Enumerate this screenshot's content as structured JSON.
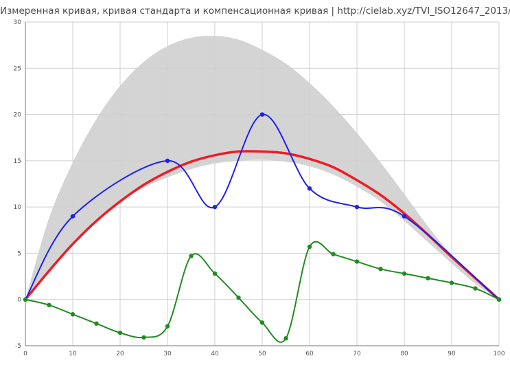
{
  "title": "Измеренная кривая, кривая стандарта и компенсационная кривая | http://cielab.xyz/TVI_ISO12647_2013/",
  "chart_data": {
    "type": "line",
    "title": "Измеренная кривая, кривая стандарта и компенсационная кривая | http://cielab.xyz/TVI_ISO12647_2013/",
    "xlabel": "",
    "ylabel": "",
    "xlim": [
      0,
      100
    ],
    "ylim": [
      -5,
      30
    ],
    "x_ticks": [
      0,
      10,
      20,
      30,
      40,
      50,
      60,
      70,
      80,
      90,
      100
    ],
    "y_ticks": [
      -5,
      0,
      5,
      10,
      15,
      20,
      25,
      30
    ],
    "grid": true,
    "tolerance_band": {
      "color": "#d4d4d4",
      "x": [
        0,
        5,
        10,
        15,
        20,
        25,
        30,
        35,
        40,
        45,
        50,
        55,
        60,
        65,
        70,
        75,
        80,
        85,
        90,
        95,
        100
      ],
      "upper": [
        0,
        8.8,
        14.8,
        19.5,
        23.1,
        25.7,
        27.4,
        28.3,
        28.5,
        28.1,
        27.0,
        25.5,
        23.4,
        20.9,
        18.0,
        14.8,
        11.4,
        7.9,
        4.8,
        2.1,
        0
      ],
      "lower": [
        0,
        3.0,
        6.0,
        8.7,
        10.6,
        12.1,
        13.2,
        14.1,
        14.7,
        15.0,
        15.1,
        14.9,
        14.4,
        13.5,
        12.2,
        10.6,
        8.5,
        6.2,
        3.9,
        1.7,
        0
      ]
    },
    "series": [
      {
        "role": "standard",
        "color": "#ee1c25",
        "markers": false,
        "x": [
          0,
          5,
          10,
          15,
          20,
          25,
          30,
          35,
          40,
          45,
          50,
          55,
          60,
          65,
          70,
          75,
          80,
          85,
          90,
          95,
          100
        ],
        "values": [
          0,
          3.1,
          6.0,
          8.5,
          10.6,
          12.4,
          13.8,
          14.9,
          15.6,
          16.0,
          16.0,
          15.8,
          15.2,
          14.3,
          12.9,
          11.3,
          9.3,
          7.0,
          4.6,
          2.3,
          0
        ]
      },
      {
        "role": "measured",
        "color": "#1f1fee",
        "markers": true,
        "x": [
          0,
          10,
          30,
          40,
          50,
          60,
          70,
          80,
          100
        ],
        "values": [
          0,
          9,
          15,
          10,
          20,
          12,
          10,
          9,
          0
        ]
      },
      {
        "role": "compensation",
        "color": "#1f8c1f",
        "markers": true,
        "x": [
          0,
          5,
          10,
          15,
          20,
          25,
          30,
          35,
          40,
          45,
          50,
          55,
          60,
          65,
          70,
          75,
          80,
          85,
          90,
          95,
          100
        ],
        "values": [
          0,
          -0.6,
          -1.6,
          -2.6,
          -3.6,
          -4.1,
          -2.9,
          4.7,
          2.8,
          0.2,
          -2.5,
          -4.2,
          5.7,
          4.9,
          4.1,
          3.3,
          2.8,
          2.3,
          1.8,
          1.2,
          0
        ]
      }
    ]
  }
}
